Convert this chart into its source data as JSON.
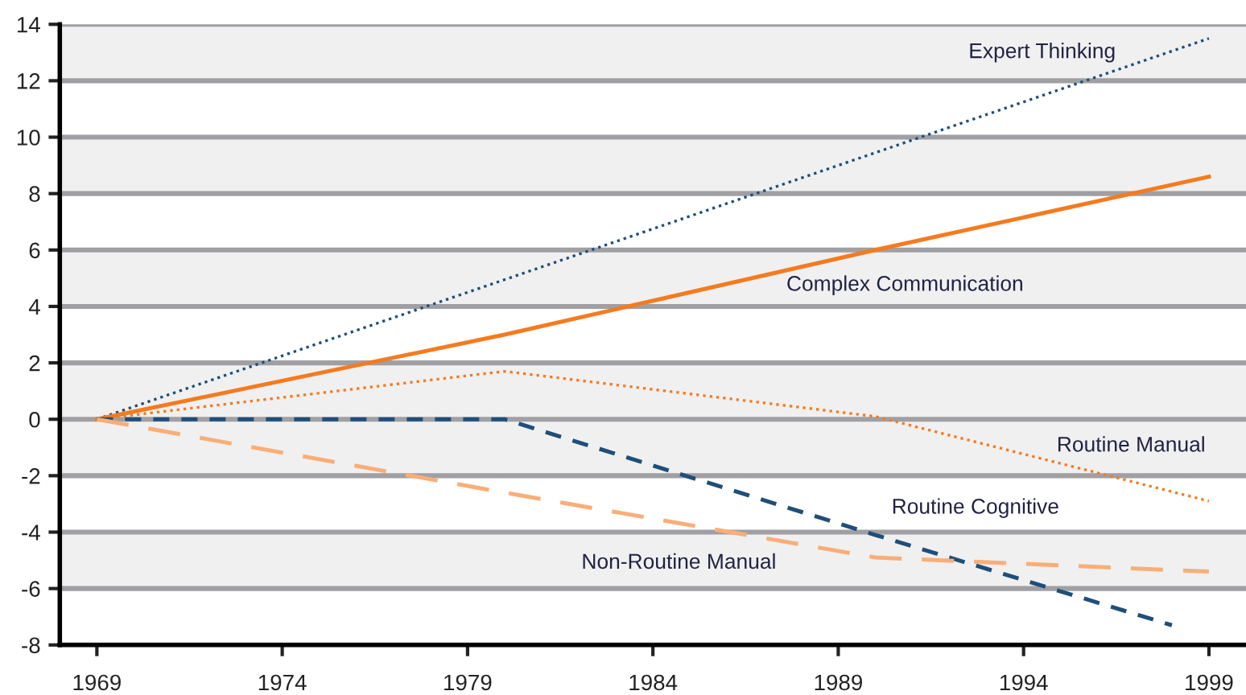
{
  "chart_data": {
    "type": "line",
    "series": [
      {
        "name": "Expert Thinking",
        "color": "#1f4e79",
        "line_style": "dotted",
        "x": [
          1969,
          1999
        ],
        "values": [
          0,
          13.5
        ]
      },
      {
        "name": "Complex Communication",
        "color": "#f47b20",
        "line_style": "solid",
        "x": [
          1969,
          1980,
          1990,
          1999
        ],
        "values": [
          0,
          3.0,
          6.0,
          8.6
        ]
      },
      {
        "name": "Routine Manual",
        "color": "#f47b20",
        "line_style": "dotted",
        "x": [
          1969,
          1980,
          1990,
          1999
        ],
        "values": [
          0,
          1.7,
          0.1,
          -2.9
        ]
      },
      {
        "name": "Routine Cognitive",
        "color": "#1f4e79",
        "line_style": "dashed",
        "x": [
          1969,
          1980,
          1990,
          1998
        ],
        "values": [
          0,
          0,
          -4.1,
          -7.3
        ]
      },
      {
        "name": "Non-Routine Manual",
        "color": "#f9ae78",
        "line_style": "longdash",
        "x": [
          1969,
          1980,
          1990,
          1999
        ],
        "values": [
          0,
          -2.6,
          -4.9,
          -5.4
        ]
      }
    ],
    "xlim": [
      1968,
      2000
    ],
    "xticks": [
      1969,
      1974,
      1979,
      1984,
      1989,
      1994,
      1999
    ],
    "ylim": [
      -8,
      14
    ],
    "yticks": [
      -8,
      -6,
      -4,
      -2,
      0,
      2,
      4,
      6,
      8,
      10,
      12,
      14
    ],
    "grid": "y",
    "legend": false,
    "marker": "none",
    "bands": [
      {
        "axis": "y",
        "from": 12,
        "to": 14,
        "color": "#f0f0f0"
      },
      {
        "axis": "y",
        "from": 8,
        "to": 10,
        "color": "#f0f0f0"
      },
      {
        "axis": "y",
        "from": 4,
        "to": 6,
        "color": "#f0f0f0"
      },
      {
        "axis": "y",
        "from": -2,
        "to": 2,
        "color": "#f0f0f0"
      },
      {
        "axis": "y",
        "from": -6,
        "to": -4,
        "color": "#f0f0f0"
      }
    ]
  }
}
